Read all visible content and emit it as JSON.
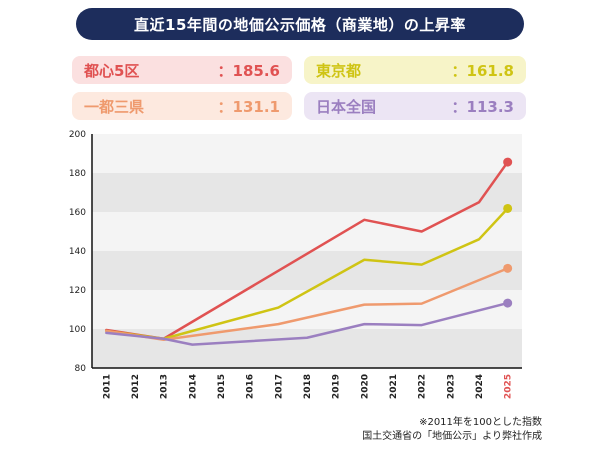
{
  "title": "直近15年間の地価公示価格（商業地）の上昇率",
  "legend": [
    {
      "name": "都心5区",
      "value": "：185.6",
      "color": "#e05252",
      "bg": "#fbe0e0"
    },
    {
      "name": "東京都",
      "value": "：161.8",
      "color": "#cfc414",
      "bg": "#f7f4c8"
    },
    {
      "name": "一都三県",
      "value": "：131.1",
      "color": "#ef9a6e",
      "bg": "#fde9df"
    },
    {
      "name": "日本全国",
      "value": "：113.3",
      "color": "#9b7fc0",
      "bg": "#ece5f4"
    }
  ],
  "notes": {
    "line1": "※2011年を100とした指数",
    "line2": "国土交通省の「地価公示」より弊社作成"
  },
  "chart_data": {
    "type": "line",
    "x": [
      "2011",
      "2012",
      "2013",
      "2014",
      "2015",
      "2016",
      "2017",
      "2018",
      "2019",
      "2020",
      "2021",
      "2022",
      "2023",
      "2024",
      "2025"
    ],
    "highlight_x": "2025",
    "highlight_color": "#e05252",
    "ylim": [
      80,
      200
    ],
    "yticks": [
      80,
      100,
      120,
      140,
      160,
      180,
      200
    ],
    "grid": "alternating horizontal bands",
    "series": [
      {
        "name": "都心5区",
        "color": "#e05252",
        "values": [
          99.5,
          null,
          95,
          null,
          null,
          null,
          null,
          null,
          null,
          156,
          null,
          150,
          null,
          165,
          185.6
        ]
      },
      {
        "name": "東京都",
        "color": "#cfc414",
        "values": [
          99,
          null,
          95,
          null,
          null,
          null,
          111,
          null,
          null,
          135.5,
          null,
          133,
          null,
          146,
          161.8
        ]
      },
      {
        "name": "一都三県",
        "color": "#ef9a6e",
        "values": [
          99,
          null,
          94.5,
          null,
          null,
          null,
          102.5,
          null,
          null,
          112.5,
          null,
          113,
          null,
          null,
          131.1
        ]
      },
      {
        "name": "日本全国",
        "color": "#9b7fc0",
        "values": [
          98,
          null,
          95,
          92,
          null,
          null,
          null,
          95.5,
          null,
          102.5,
          null,
          102,
          null,
          null,
          113.3
        ]
      }
    ]
  }
}
